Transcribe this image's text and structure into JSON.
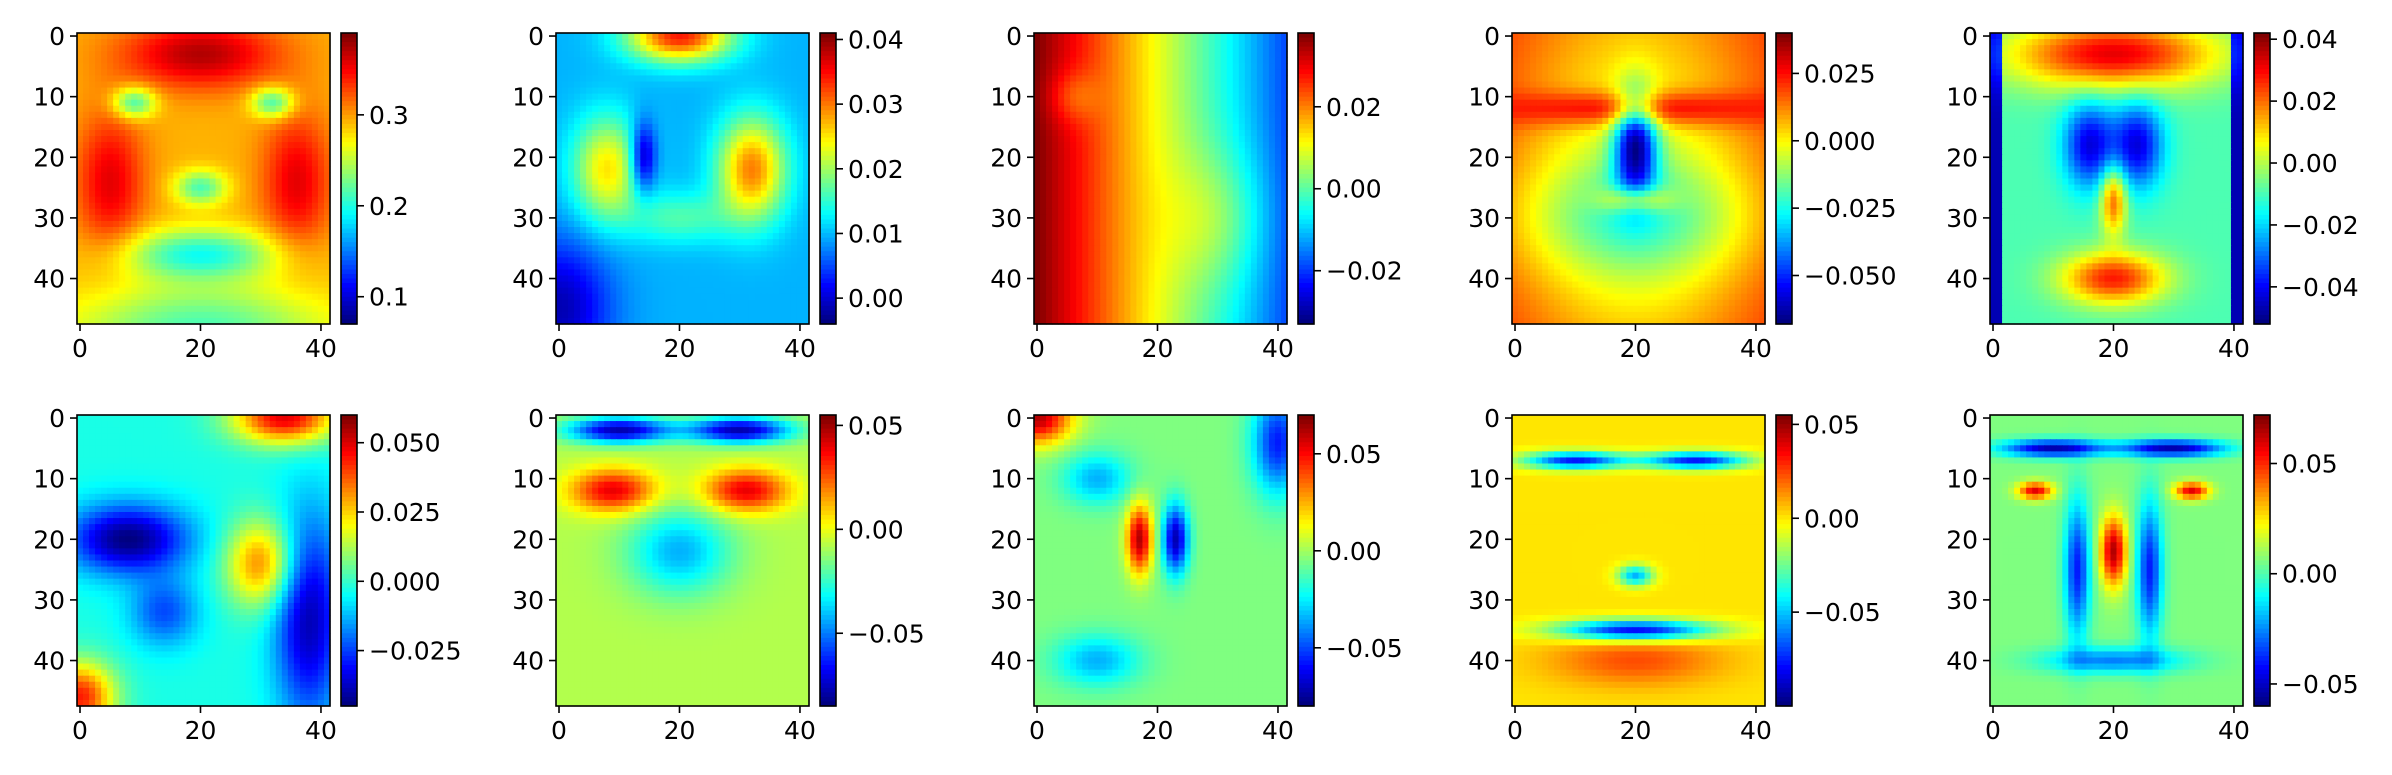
{
  "chart_data": [
    {
      "type": "heatmap",
      "image_rows": 48,
      "image_cols": 42,
      "colormap": "jet",
      "x_ticks": [
        0,
        20,
        40
      ],
      "y_ticks": [
        0,
        10,
        20,
        30,
        40
      ],
      "clim": [
        0.07,
        0.39
      ],
      "colorbar_ticks": [
        0.1,
        0.2,
        0.3
      ],
      "colorbar_labels": [
        "0.1",
        "0.2",
        "0.3"
      ]
    },
    {
      "type": "heatmap",
      "image_rows": 48,
      "image_cols": 42,
      "colormap": "jet",
      "x_ticks": [
        0,
        20,
        40
      ],
      "y_ticks": [
        0,
        10,
        20,
        30,
        40
      ],
      "clim": [
        -0.004,
        0.041
      ],
      "colorbar_ticks": [
        0.0,
        0.01,
        0.02,
        0.03,
        0.04
      ],
      "colorbar_labels": [
        "0.00",
        "0.01",
        "0.02",
        "0.03",
        "0.04"
      ]
    },
    {
      "type": "heatmap",
      "image_rows": 48,
      "image_cols": 42,
      "colormap": "jet",
      "x_ticks": [
        0,
        20,
        40
      ],
      "y_ticks": [
        0,
        10,
        20,
        30,
        40
      ],
      "clim": [
        -0.033,
        0.038
      ],
      "colorbar_ticks": [
        -0.02,
        0.0,
        0.02
      ],
      "colorbar_labels": [
        "−0.02",
        "0.00",
        "0.02"
      ]
    },
    {
      "type": "heatmap",
      "image_rows": 48,
      "image_cols": 42,
      "colormap": "jet",
      "x_ticks": [
        0,
        20,
        40
      ],
      "y_ticks": [
        0,
        10,
        20,
        30,
        40
      ],
      "clim": [
        -0.068,
        0.04
      ],
      "colorbar_ticks": [
        -0.05,
        -0.025,
        0.0,
        0.025
      ],
      "colorbar_labels": [
        "−0.050",
        "−0.025",
        "0.000",
        "0.025"
      ]
    },
    {
      "type": "heatmap",
      "image_rows": 48,
      "image_cols": 42,
      "colormap": "jet",
      "x_ticks": [
        0,
        20,
        40
      ],
      "y_ticks": [
        0,
        10,
        20,
        30,
        40
      ],
      "clim": [
        -0.052,
        0.042
      ],
      "colorbar_ticks": [
        -0.04,
        -0.02,
        0.0,
        0.02,
        0.04
      ],
      "colorbar_labels": [
        "−0.04",
        "−0.02",
        "0.00",
        "0.02",
        "0.04"
      ]
    },
    {
      "type": "heatmap",
      "image_rows": 48,
      "image_cols": 42,
      "colormap": "jet",
      "x_ticks": [
        0,
        20,
        40
      ],
      "y_ticks": [
        0,
        10,
        20,
        30,
        40
      ],
      "clim": [
        -0.045,
        0.06
      ],
      "colorbar_ticks": [
        -0.025,
        0.0,
        0.025,
        0.05
      ],
      "colorbar_labels": [
        "−0.025",
        "0.000",
        "0.025",
        "0.050"
      ]
    },
    {
      "type": "heatmap",
      "image_rows": 48,
      "image_cols": 42,
      "colormap": "jet",
      "x_ticks": [
        0,
        20,
        40
      ],
      "y_ticks": [
        0,
        10,
        20,
        30,
        40
      ],
      "clim": [
        -0.085,
        0.055
      ],
      "colorbar_ticks": [
        -0.05,
        0.0,
        0.05
      ],
      "colorbar_labels": [
        "−0.05",
        "0.00",
        "0.05"
      ]
    },
    {
      "type": "heatmap",
      "image_rows": 48,
      "image_cols": 42,
      "colormap": "jet",
      "x_ticks": [
        0,
        20,
        40
      ],
      "y_ticks": [
        0,
        10,
        20,
        30,
        40
      ],
      "clim": [
        -0.08,
        0.07
      ],
      "colorbar_ticks": [
        -0.05,
        0.0,
        0.05
      ],
      "colorbar_labels": [
        "−0.05",
        "0.00",
        "0.05"
      ]
    },
    {
      "type": "heatmap",
      "image_rows": 48,
      "image_cols": 42,
      "colormap": "jet",
      "x_ticks": [
        0,
        20,
        40
      ],
      "y_ticks": [
        0,
        10,
        20,
        30,
        40
      ],
      "clim": [
        -0.1,
        0.055
      ],
      "colorbar_ticks": [
        -0.05,
        0.0,
        0.05
      ],
      "colorbar_labels": [
        "−0.05",
        "0.00",
        "0.05"
      ]
    },
    {
      "type": "heatmap",
      "image_rows": 48,
      "image_cols": 42,
      "colormap": "jet",
      "x_ticks": [
        0,
        20,
        40
      ],
      "y_ticks": [
        0,
        10,
        20,
        30,
        40
      ],
      "clim": [
        -0.06,
        0.072
      ],
      "colorbar_ticks": [
        -0.05,
        0.0,
        0.05
      ],
      "colorbar_labels": [
        "−0.05",
        "0.00",
        "0.05"
      ]
    }
  ]
}
